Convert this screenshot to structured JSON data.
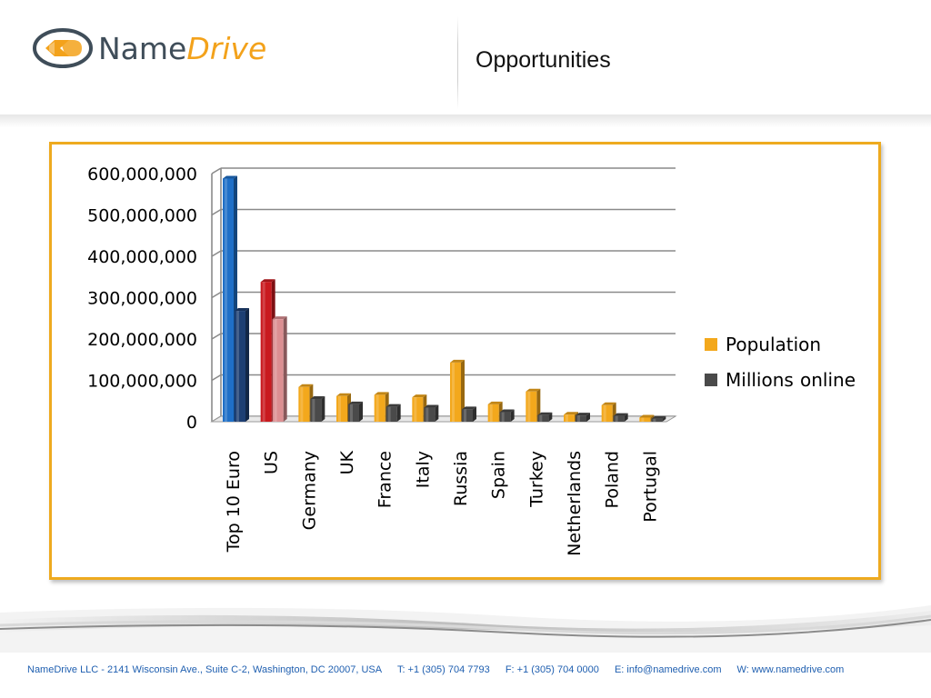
{
  "header": {
    "logo": {
      "name_part1": "Name",
      "name_part2": "Drive"
    },
    "title": "Opportunities"
  },
  "chart_data": {
    "type": "bar",
    "title": "",
    "xlabel": "",
    "ylabel": "",
    "ylim": [
      0,
      600000000
    ],
    "yticks": [
      "600,000,000",
      "500,000,000",
      "400,000,000",
      "300,000,000",
      "200,000,000",
      "100,000,000",
      "0"
    ],
    "categories": [
      "Top 10 Euro",
      "US",
      "Germany",
      "UK",
      "France",
      "Italy",
      "Russia",
      "Spain",
      "Turkey",
      "Netherlands",
      "Poland",
      "Portugal"
    ],
    "series": [
      {
        "name": "Population",
        "color": "#f3a81c",
        "values": [
          588000000,
          338000000,
          84000000,
          62000000,
          65000000,
          59000000,
          143000000,
          42000000,
          73000000,
          17000000,
          40000000,
          10000000
        ]
      },
      {
        "name": "Millions online",
        "color": "#4a4a4a",
        "values": [
          268000000,
          248000000,
          55000000,
          42000000,
          36000000,
          34000000,
          30000000,
          23000000,
          16000000,
          15000000,
          14000000,
          7000000
        ]
      }
    ],
    "highlight_colors": {
      "Top 10 Euro": [
        "#1f6fc7",
        "#1d3f73"
      ],
      "US": [
        "#c91a1f",
        "#dc8f92"
      ]
    },
    "grid": true,
    "legend_position": "right",
    "legend": [
      {
        "label_a": "Population",
        "label_b": ""
      },
      {
        "label_a": "Millions",
        "label_b": "online"
      }
    ]
  },
  "footer": {
    "address": "NameDrive LLC  -  2141 Wisconsin Ave., Suite C-2, Washington, DC 20007, USA",
    "phone": "T: +1 (305) 704 7793",
    "fax": "F:  +1 (305) 704 0000",
    "email": "E: info@namedrive.com",
    "web": "W: www.namedrive.com"
  }
}
